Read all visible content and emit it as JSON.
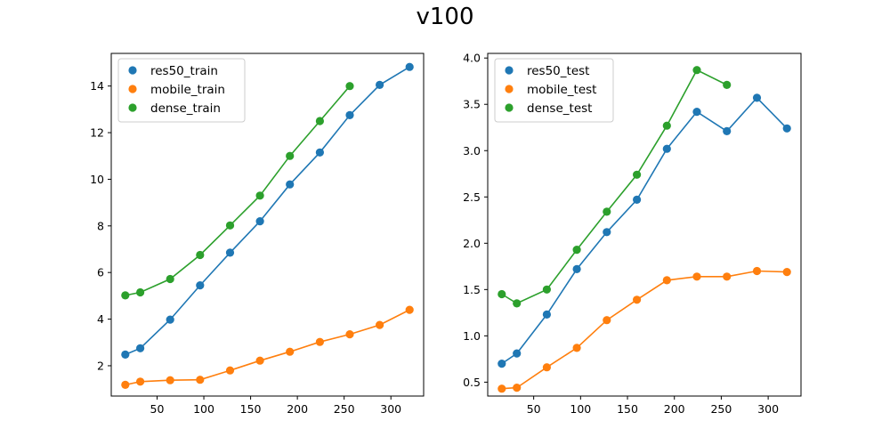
{
  "figure_title": "v100",
  "colors": {
    "res50": "#1f77b4",
    "mobile": "#ff7f0e",
    "dense": "#2ca02c"
  },
  "chart_data": [
    {
      "type": "line",
      "title": "",
      "xlabel": "",
      "ylabel": "",
      "xlim": [
        1,
        335
      ],
      "ylim": [
        0.7,
        15.4
      ],
      "xticks": [
        50,
        100,
        150,
        200,
        250,
        300
      ],
      "yticks": [
        2,
        4,
        6,
        8,
        10,
        12,
        14
      ],
      "legend_position": "top-left",
      "grid": false,
      "series": [
        {
          "name": "res50_train",
          "color": "#1f77b4",
          "x": [
            16,
            32,
            64,
            96,
            128,
            160,
            192,
            224,
            256,
            288,
            320
          ],
          "y": [
            2.48,
            2.75,
            3.98,
            5.45,
            6.85,
            8.2,
            9.78,
            11.15,
            12.75,
            14.05,
            14.82
          ]
        },
        {
          "name": "mobile_train",
          "color": "#ff7f0e",
          "x": [
            16,
            32,
            64,
            96,
            128,
            160,
            192,
            224,
            256,
            288,
            320
          ],
          "y": [
            1.18,
            1.32,
            1.38,
            1.4,
            1.8,
            2.22,
            2.6,
            3.02,
            3.35,
            3.75,
            4.4
          ]
        },
        {
          "name": "dense_train",
          "color": "#2ca02c",
          "x": [
            16,
            32,
            64,
            96,
            128,
            160,
            192,
            224,
            256
          ],
          "y": [
            5.02,
            5.15,
            5.72,
            6.75,
            8.02,
            9.3,
            11.0,
            12.5,
            14.0
          ]
        }
      ]
    },
    {
      "type": "line",
      "title": "",
      "xlabel": "",
      "ylabel": "",
      "xlim": [
        1,
        335
      ],
      "ylim": [
        0.35,
        4.05
      ],
      "xticks": [
        50,
        100,
        150,
        200,
        250,
        300
      ],
      "yticks": [
        0.5,
        1.0,
        1.5,
        2.0,
        2.5,
        3.0,
        3.5,
        4.0
      ],
      "ytick_labels": [
        "0.5",
        "1.0",
        "1.5",
        "2.0",
        "2.5",
        "3.0",
        "3.5",
        "4.0"
      ],
      "legend_position": "top-left",
      "grid": false,
      "series": [
        {
          "name": "res50_test",
          "color": "#1f77b4",
          "x": [
            16,
            32,
            64,
            96,
            128,
            160,
            192,
            224,
            256,
            288,
            320
          ],
          "y": [
            0.7,
            0.81,
            1.23,
            1.72,
            2.12,
            2.47,
            3.02,
            3.42,
            3.21,
            3.57,
            3.24
          ]
        },
        {
          "name": "mobile_test",
          "color": "#ff7f0e",
          "x": [
            16,
            32,
            64,
            96,
            128,
            160,
            192,
            224,
            256,
            288,
            320
          ],
          "y": [
            0.43,
            0.44,
            0.66,
            0.87,
            1.17,
            1.39,
            1.6,
            1.64,
            1.64,
            1.7,
            1.69
          ]
        },
        {
          "name": "dense_test",
          "color": "#2ca02c",
          "x": [
            16,
            32,
            64,
            96,
            128,
            160,
            192,
            224,
            256
          ],
          "y": [
            1.45,
            1.35,
            1.5,
            1.93,
            2.34,
            2.74,
            3.27,
            3.87,
            3.71
          ]
        }
      ]
    }
  ]
}
